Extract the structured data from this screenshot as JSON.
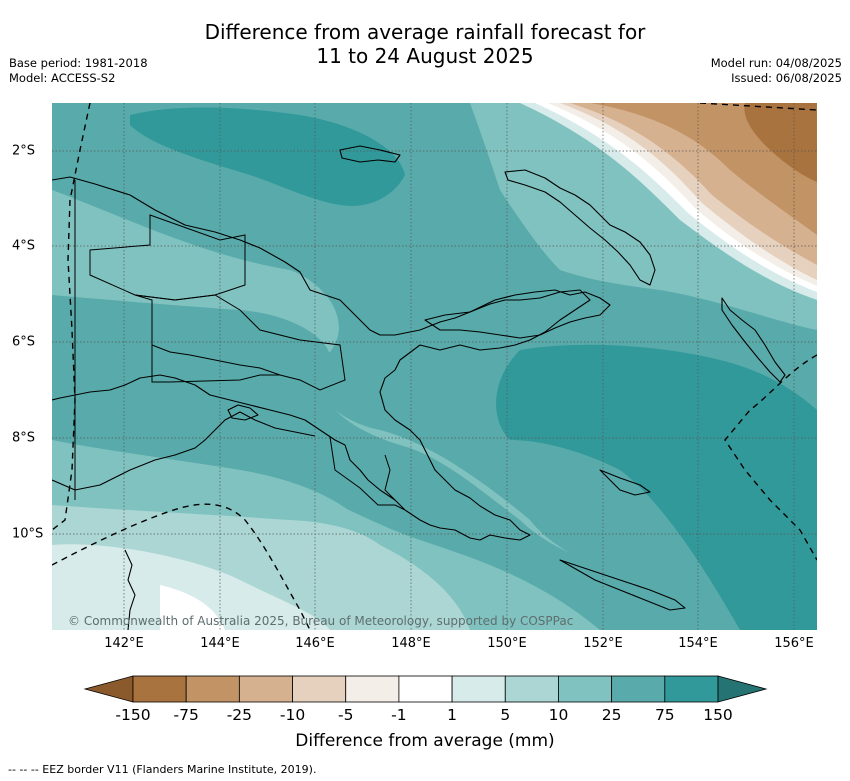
{
  "title": {
    "line1": "Difference from average rainfall forecast for",
    "line2": "11 to 24 August 2025"
  },
  "meta": {
    "base_period": "Base period: 1981-2018",
    "model": "Model: ACCESS-S2",
    "model_run": "Model run: 04/08/2025",
    "issued": "Issued: 06/08/2025"
  },
  "map": {
    "lon_labels": [
      "142°E",
      "144°E",
      "146°E",
      "148°E",
      "150°E",
      "152°E",
      "154°E",
      "156°E"
    ],
    "lat_labels": [
      "2°S",
      "4°S",
      "6°S",
      "8°S",
      "10°S"
    ],
    "credit": "© Commonwealth of Australia 2025, Bureau of Meteorology, supported by COSPPac"
  },
  "colorbar": {
    "labels": [
      "-150",
      "-75",
      "-25",
      "-10",
      "-5",
      "-1",
      "1",
      "5",
      "10",
      "25",
      "75",
      "150"
    ],
    "colors": [
      "#8a5a2c",
      "#a8733e",
      "#c29365",
      "#d6b190",
      "#e6d1be",
      "#f3eee7",
      "#ffffff",
      "#d6ebea",
      "#abd6d4",
      "#80c2c0",
      "#59abab",
      "#32999a",
      "#267373"
    ],
    "title": "Difference from average (mm)"
  },
  "legend_note": "--  --  -- EEZ border V11 (Flanders Marine Institute, 2019)."
}
